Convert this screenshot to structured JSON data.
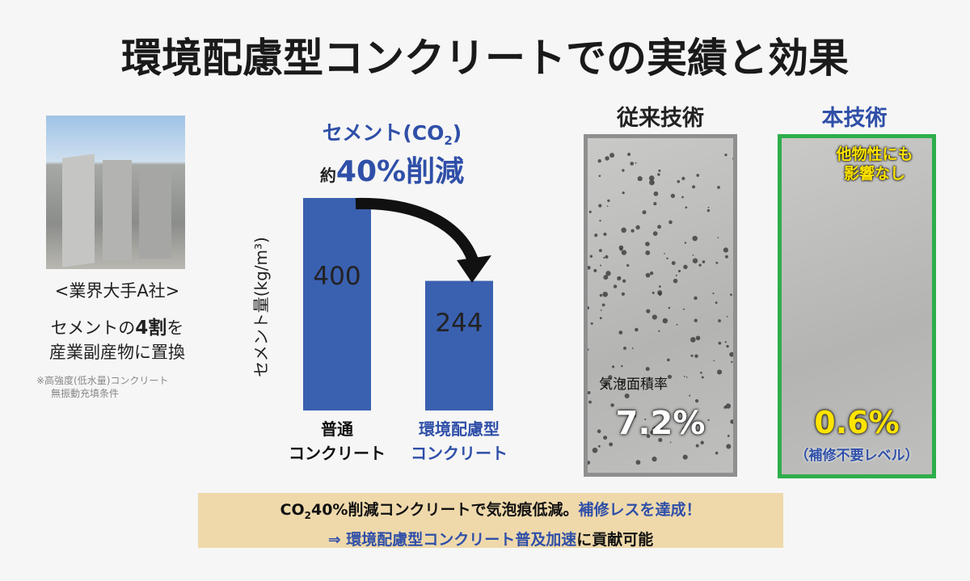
{
  "title": "環境配慮型コンクリートでの実績と効果",
  "left": {
    "company": "<業界大手A社>",
    "line1": [
      "セメントの",
      "4割",
      "を"
    ],
    "line2": "産業副産物に置換",
    "note": [
      "※高強度(低水量)コンクリート",
      "無振動充填条件"
    ]
  },
  "chart_data": {
    "type": "bar",
    "heading": [
      "セメント(CO",
      "2",
      ")"
    ],
    "reduction": [
      "約",
      "40%削減"
    ],
    "y_label": "セメント量(kg/m³)",
    "categories": [
      "普通\nコンクリート",
      "環境配慮型\nコンクリート"
    ],
    "values": [
      400,
      244
    ],
    "color": "#3a60b0",
    "ylim": [
      0,
      400
    ]
  },
  "conventional": {
    "title": "従来技術",
    "metric": "気泡面積率",
    "value": "7.2%"
  },
  "proposed": {
    "title": "本技術",
    "note": "他物性にも\n影響なし",
    "value": "0.6%",
    "sub": "（補修不要レベル）"
  },
  "footer": {
    "line1": [
      "CO",
      "2",
      "40%削減コンクリートで気泡痕低減。",
      "補修レスを達成！"
    ],
    "line2": [
      "⇒ 環境配慮型コンクリート普及加速",
      "に貢献可能"
    ]
  }
}
